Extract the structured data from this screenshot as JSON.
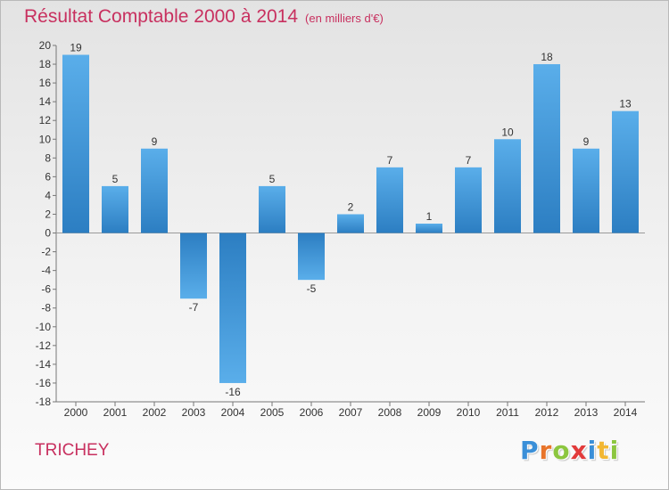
{
  "chart_data": {
    "type": "bar",
    "title": "Résultat Comptable 2000 à 2014",
    "subtitle": "(en milliers d'€)",
    "categories": [
      "2000",
      "2001",
      "2002",
      "2003",
      "2004",
      "2005",
      "2006",
      "2007",
      "2008",
      "2009",
      "2010",
      "2011",
      "2012",
      "2013",
      "2014"
    ],
    "values": [
      19,
      5,
      9,
      -7,
      -16,
      5,
      -5,
      2,
      7,
      1,
      7,
      10,
      18,
      9,
      13
    ],
    "ylim": [
      -18,
      20
    ],
    "ytick_step": 2,
    "xlabel": "",
    "ylabel": "",
    "grid": false,
    "bar_color_light": "#5aaeea",
    "bar_color_dark": "#2c7ec2"
  },
  "footer": {
    "commune": "TRICHEY",
    "logo_letters": [
      {
        "char": "P",
        "color": "#3a8fd8"
      },
      {
        "char": "r",
        "color": "#e8742a"
      },
      {
        "char": "o",
        "color": "#8cc63f"
      },
      {
        "char": "x",
        "color": "#e23b3b"
      },
      {
        "char": "i",
        "color": "#3a8fd8"
      },
      {
        "char": "t",
        "color": "#f2b733"
      },
      {
        "char": "i",
        "color": "#8cc63f"
      }
    ]
  }
}
